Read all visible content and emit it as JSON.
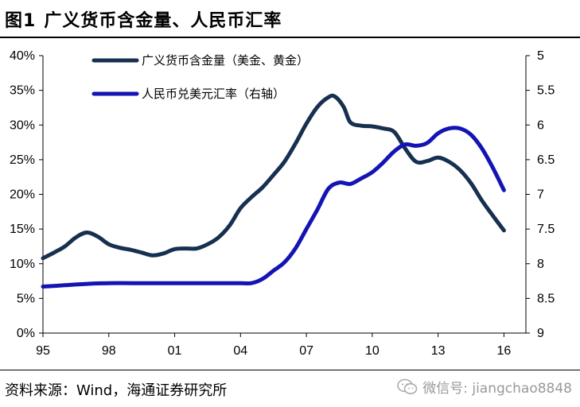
{
  "header": {
    "figure_label": "图1",
    "title": "广义货币含金量、人民币汇率"
  },
  "footer": {
    "source": "资料来源：Wind，海通证券研究所",
    "watermark": "微信号: jiangchao8848"
  },
  "colors": {
    "gold_content": "#17304f",
    "fx_rate": "#1414b4",
    "axis": "#000000"
  },
  "chart_data": {
    "type": "line",
    "title": "广义货币含金量、人民币汇率",
    "x_ticks": [
      "95",
      "98",
      "01",
      "04",
      "07",
      "10",
      "13",
      "16"
    ],
    "x_tick_values": [
      1995,
      1998,
      2001,
      2004,
      2007,
      2010,
      2013,
      2016
    ],
    "xlim": [
      1995,
      2017
    ],
    "left_axis": {
      "ylim": [
        0,
        40
      ],
      "ticks": [
        0,
        5,
        10,
        15,
        20,
        25,
        30,
        35,
        40
      ],
      "tick_labels": [
        "0%",
        "5%",
        "10%",
        "15%",
        "20%",
        "25%",
        "30%",
        "35%",
        "40%"
      ]
    },
    "right_axis": {
      "ylim": [
        5,
        9
      ],
      "inverted": true,
      "ticks": [
        5,
        5.5,
        6,
        6.5,
        7,
        7.5,
        8,
        8.5,
        9
      ],
      "tick_labels": [
        "5",
        "5.5",
        "6",
        "6.5",
        "7",
        "7.5",
        "8",
        "8.5",
        "9"
      ]
    },
    "legend_position": "top-left",
    "grid": false,
    "series": [
      {
        "name": "广义货币含金量（美金、黄金）",
        "axis": "left",
        "x": [
          1995.0,
          1995.5,
          1996.0,
          1996.5,
          1997.0,
          1997.5,
          1998.0,
          1998.5,
          1999.0,
          1999.5,
          2000.0,
          2000.5,
          2001.0,
          2001.5,
          2002.0,
          2002.5,
          2003.0,
          2003.5,
          2004.0,
          2004.5,
          2005.0,
          2005.5,
          2006.0,
          2006.5,
          2007.0,
          2007.5,
          2008.0,
          2008.3,
          2008.7,
          2009.0,
          2009.5,
          2010.0,
          2010.5,
          2011.0,
          2011.5,
          2012.0,
          2012.5,
          2013.0,
          2013.5,
          2014.0,
          2014.5,
          2015.0,
          2015.5,
          2016.0
        ],
        "values": [
          10.8,
          11.6,
          12.5,
          13.8,
          14.5,
          13.9,
          12.8,
          12.3,
          12.0,
          11.6,
          11.2,
          11.5,
          12.1,
          12.2,
          12.2,
          12.8,
          13.8,
          15.5,
          18.0,
          19.6,
          21.0,
          22.8,
          24.7,
          27.3,
          30.2,
          32.6,
          34.0,
          34.1,
          32.6,
          30.4,
          29.9,
          29.8,
          29.5,
          29.0,
          26.6,
          24.7,
          24.8,
          25.3,
          24.7,
          23.5,
          21.6,
          19.1,
          16.9,
          14.8
        ]
      },
      {
        "name": "人民币兑美元汇率（右轴）",
        "axis": "right",
        "x": [
          1995.0,
          1996.0,
          1997.0,
          1998.0,
          1999.0,
          2000.0,
          2001.0,
          2002.0,
          2003.0,
          2003.5,
          2004.0,
          2004.5,
          2005.0,
          2005.5,
          2006.0,
          2006.5,
          2007.0,
          2007.5,
          2008.0,
          2008.5,
          2009.0,
          2009.5,
          2010.0,
          2010.5,
          2011.0,
          2011.5,
          2012.0,
          2012.5,
          2013.0,
          2013.5,
          2014.0,
          2014.5,
          2015.0,
          2015.5,
          2016.0
        ],
        "values": [
          8.33,
          8.31,
          8.29,
          8.28,
          8.28,
          8.28,
          8.28,
          8.28,
          8.28,
          8.28,
          8.28,
          8.28,
          8.22,
          8.1,
          7.98,
          7.78,
          7.5,
          7.22,
          6.92,
          6.83,
          6.85,
          6.77,
          6.68,
          6.54,
          6.38,
          6.28,
          6.3,
          6.26,
          6.12,
          6.05,
          6.05,
          6.14,
          6.34,
          6.62,
          6.94
        ]
      }
    ]
  }
}
